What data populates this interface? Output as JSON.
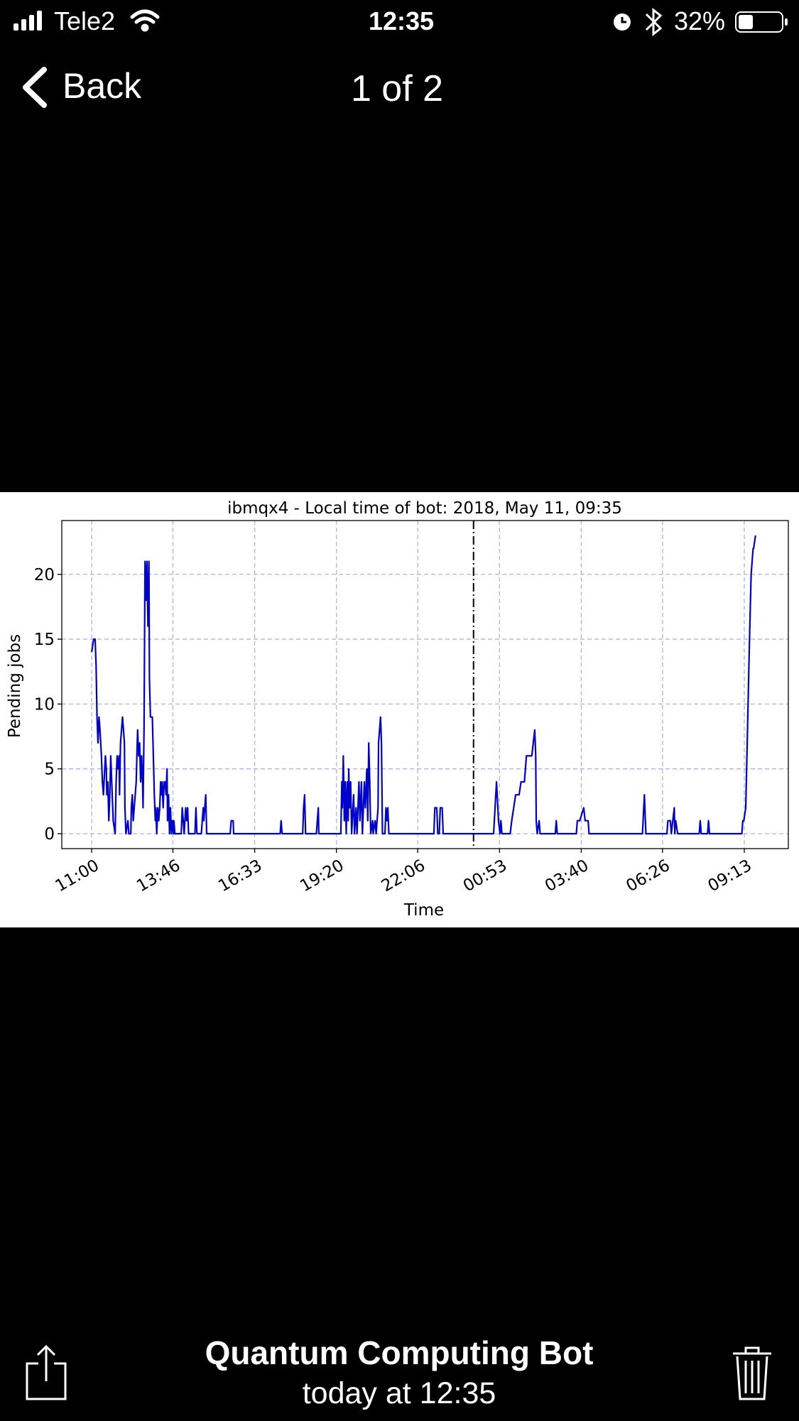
{
  "status_bar": {
    "carrier": "Tele2",
    "time": "12:35",
    "battery": "32%"
  },
  "nav": {
    "back": "Back",
    "title": "1 of 2"
  },
  "chart_data": {
    "type": "line",
    "title": "ibmqx4 - Local time of bot: 2018, May 11, 09:35",
    "x_label": "Time",
    "y_label": "Pending jobs",
    "color": "#0000cc",
    "grid": true,
    "vline": 780,
    "xlim": [
      -61,
      1423
    ],
    "ylim": [
      -1.15,
      24.15
    ],
    "xticks": [
      {
        "value": 0,
        "label": "11:00"
      },
      {
        "value": 166,
        "label": "13:46"
      },
      {
        "value": 333,
        "label": "16:33"
      },
      {
        "value": 500,
        "label": "19:20"
      },
      {
        "value": 666,
        "label": "22:06"
      },
      {
        "value": 833,
        "label": "00:53"
      },
      {
        "value": 1000,
        "label": "03:40"
      },
      {
        "value": 1166,
        "label": "06:26"
      },
      {
        "value": 1333,
        "label": "09:13"
      }
    ],
    "yticks": [
      0,
      5,
      10,
      15,
      20
    ],
    "x": [
      0,
      4,
      7,
      9,
      11,
      13,
      15,
      17,
      20,
      22,
      24,
      28,
      30,
      31,
      33,
      35,
      37,
      39,
      43,
      44,
      48,
      50,
      52,
      54,
      56,
      57,
      59,
      63,
      67,
      68,
      70,
      74,
      76,
      80,
      81,
      83,
      85,
      87,
      91,
      93,
      94,
      96,
      98,
      100,
      102,
      104,
      105,
      107,
      109,
      111,
      113,
      115,
      117,
      118,
      120,
      124,
      126,
      128,
      130,
      131,
      133,
      135,
      137,
      139,
      141,
      142,
      144,
      146,
      148,
      150,
      152,
      154,
      155,
      157,
      159,
      161,
      163,
      165,
      167,
      168,
      170,
      183,
      185,
      187,
      189,
      192,
      194,
      196,
      198,
      211,
      213,
      215,
      224,
      226,
      228,
      229,
      231,
      233,
      235,
      283,
      285,
      289,
      290,
      385,
      387,
      389,
      431,
      433,
      435,
      437,
      459,
      461,
      463,
      464,
      509,
      511,
      512,
      514,
      516,
      518,
      520,
      522,
      524,
      525,
      527,
      529,
      531,
      535,
      537,
      540,
      542,
      546,
      548,
      551,
      553,
      557,
      559,
      562,
      564,
      566,
      568,
      570,
      574,
      575,
      579,
      581,
      585,
      586,
      590,
      592,
      594,
      599,
      601,
      603,
      605,
      607,
      699,
      701,
      705,
      707,
      710,
      712,
      716,
      718,
      821,
      827,
      831,
      834,
      836,
      838,
      855,
      858,
      862,
      866,
      873,
      877,
      884,
      888,
      899,
      905,
      907,
      908,
      910,
      914,
      916,
      947,
      949,
      951,
      990,
      992,
      997,
      1005,
      1008,
      1014,
      1016,
      1125,
      1129,
      1132,
      1175,
      1177,
      1182,
      1184,
      1190,
      1191,
      1193,
      1197,
      1241,
      1243,
      1245,
      1258,
      1260,
      1262,
      1328,
      1330,
      1332,
      1336,
      1339,
      1343,
      1347,
      1351,
      1352,
      1356
    ],
    "values": [
      14,
      15,
      15,
      13,
      9,
      7,
      9,
      8,
      6,
      4,
      3,
      6,
      5,
      3,
      4,
      1,
      3,
      6,
      2,
      1,
      0,
      4,
      6,
      5,
      6,
      3,
      7,
      9,
      7,
      2,
      0,
      1,
      0,
      0,
      2,
      3,
      1,
      2,
      4,
      7,
      8,
      6,
      7,
      4,
      6,
      4,
      2,
      8,
      21,
      18,
      21,
      16,
      21,
      12,
      9,
      9,
      6,
      3,
      1,
      2,
      0,
      2,
      1,
      2,
      4,
      3,
      4,
      2,
      4,
      4,
      3,
      5,
      1,
      3,
      0,
      2,
      0,
      1,
      0,
      1,
      0,
      0,
      2,
      1,
      0,
      2,
      1,
      2,
      0,
      0,
      2,
      0,
      0,
      1,
      2,
      1,
      2,
      3,
      0,
      0,
      1,
      1,
      0,
      0,
      1,
      0,
      0,
      2,
      3,
      0,
      0,
      1,
      2,
      0,
      0,
      4,
      2,
      6,
      1,
      4,
      0,
      4,
      1,
      5,
      2,
      4,
      0,
      3,
      0,
      2,
      0,
      4,
      1,
      4,
      0,
      4,
      2,
      5,
      1,
      7,
      4,
      0,
      1,
      0,
      1,
      0,
      2,
      7,
      9,
      7,
      0,
      0,
      2,
      1,
      2,
      0,
      0,
      2,
      2,
      0,
      0,
      2,
      2,
      0,
      0,
      4,
      1,
      0,
      1,
      0,
      0,
      1,
      2,
      3,
      3,
      4,
      4,
      6,
      6,
      8,
      6,
      1,
      0,
      1,
      0,
      0,
      1,
      0,
      0,
      1,
      1,
      2,
      1,
      1,
      0,
      0,
      3,
      0,
      0,
      1,
      1,
      0,
      2,
      0,
      1,
      0,
      0,
      1,
      0,
      0,
      1,
      0,
      0,
      1,
      1,
      2,
      7,
      14,
      20,
      22,
      22,
      23
    ]
  },
  "footer": {
    "sender": "Quantum Computing Bot",
    "date": "today at 12:35"
  }
}
